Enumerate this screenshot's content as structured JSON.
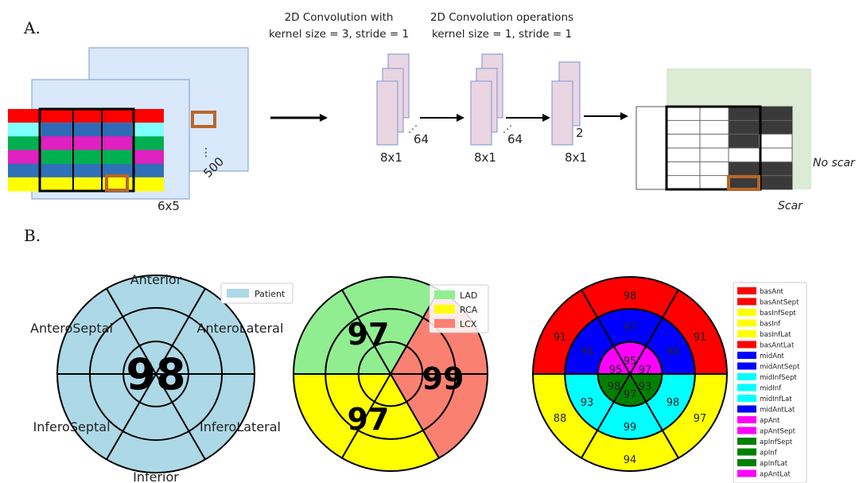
{
  "panel_a": {
    "label": "A.",
    "conv1_line1": "2D Convolution with",
    "conv1_line2": "kernel size = 3, stride = 1",
    "conv2_line1": "2D Convolution operations",
    "conv2_line2": "kernel size = 1, stride = 1",
    "input_size": "6x5",
    "stack_count": "500",
    "fm1_size": "8x1",
    "fm1_channels": "64",
    "fm2_size": "8x1",
    "fm2_channels": "64",
    "fm3_size": "8x1",
    "fm3_channels": "2",
    "no_scar": "No scar",
    "scar": "Scar",
    "grid_row_colors": [
      "#ff0000",
      "#80ffff",
      "#00b050",
      "#e020c0",
      "#3070b8",
      "#ffff00"
    ]
  },
  "panel_b": {
    "label": "B.",
    "plot1": {
      "center_value": "98",
      "segment_labels": [
        "Anterior",
        "AnteroLateral",
        "InferoLateral",
        "Inferior",
        "InferoSeptal",
        "AnteroSeptal"
      ],
      "legend": [
        {
          "label": "Patient",
          "color": "#add8e6"
        }
      ]
    },
    "plot2": {
      "values": [
        "97",
        "99",
        "97"
      ],
      "legend": [
        {
          "label": "LAD",
          "color": "#90ee90"
        },
        {
          "label": "RCA",
          "color": "#ffff00"
        },
        {
          "label": "LCX",
          "color": "#fa8072"
        }
      ]
    },
    "plot3": {
      "values": {
        "basAnt": "98",
        "basAntSept": "91",
        "basAntLat": "91",
        "basInfSept": "88",
        "basInf": "94",
        "basInfLat": "97",
        "midAnt": "97",
        "midAntSept": "94",
        "midAntLat": "98",
        "midInfSept": "93",
        "midInf": "99",
        "midInfLat": "98",
        "apAnt": "95",
        "apAntSept": "95",
        "apAntLat": "97",
        "apInfSept": "98",
        "apInf": "97",
        "apInfLat": "93"
      },
      "legend": [
        {
          "label": "basAnt",
          "color": "#ff0000"
        },
        {
          "label": "basAntSept",
          "color": "#ff0000"
        },
        {
          "label": "basInfSept",
          "color": "#ffff00"
        },
        {
          "label": "basInf",
          "color": "#ffff00"
        },
        {
          "label": "basInfLat",
          "color": "#ffff00"
        },
        {
          "label": "basAntLat",
          "color": "#ff0000"
        },
        {
          "label": "midAnt",
          "color": "#0000ff"
        },
        {
          "label": "midAntSept",
          "color": "#0000ff"
        },
        {
          "label": "midInfSept",
          "color": "#00ffff"
        },
        {
          "label": "midInf",
          "color": "#00ffff"
        },
        {
          "label": "midInfLat",
          "color": "#00ffff"
        },
        {
          "label": "midAntLat",
          "color": "#0000ff"
        },
        {
          "label": "apAnt",
          "color": "#ff00ff"
        },
        {
          "label": "apAntSept",
          "color": "#ff00ff"
        },
        {
          "label": "apInfSept",
          "color": "#008000"
        },
        {
          "label": "apInf",
          "color": "#008000"
        },
        {
          "label": "apInfLat",
          "color": "#008000"
        },
        {
          "label": "apAntLat",
          "color": "#ff00ff"
        }
      ]
    }
  }
}
